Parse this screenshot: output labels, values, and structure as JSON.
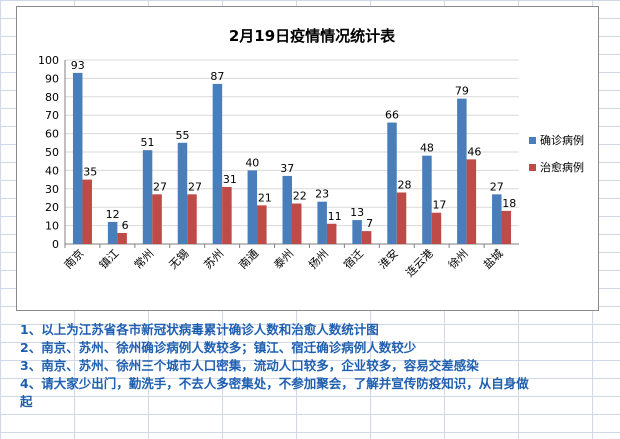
{
  "chart_data": {
    "type": "bar",
    "title": "2月19日疫情情况统计表",
    "categories": [
      "南京",
      "镇江",
      "常州",
      "无锡",
      "苏州",
      "南通",
      "泰州",
      "扬州",
      "宿迁",
      "淮安",
      "连云港",
      "徐州",
      "盐城"
    ],
    "series": [
      {
        "name": "确诊病例",
        "values": [
          93,
          12,
          51,
          55,
          87,
          40,
          37,
          23,
          13,
          66,
          48,
          79,
          27
        ],
        "color": "#4a7ebb"
      },
      {
        "name": "治愈病例",
        "values": [
          35,
          6,
          27,
          27,
          31,
          21,
          22,
          11,
          7,
          28,
          17,
          46,
          18
        ],
        "color": "#be4b48"
      }
    ],
    "ylim": [
      0,
      100
    ],
    "yticks": [
      0,
      10,
      20,
      30,
      40,
      50,
      60,
      70,
      80,
      90,
      100
    ],
    "grid": true,
    "legend": "right",
    "xlabel": "",
    "ylabel": ""
  },
  "notes": [
    "1、以上为江苏省各市新冠状病毒累计确诊人数和治愈人数统计图",
    "2、南京、苏州、徐州确诊病例人数较多；镇江、宿迁确诊病例人数较少",
    "3、南京、苏州、徐州三个城市人口密集，流动人口较多，企业较多，容易交差感染",
    "4、请大家少出门，勤洗手，不去人多密集处，不参加聚会，了解并宣传防疫知识，从自身做起"
  ],
  "colors": {
    "gridline": "#d9d9d9",
    "cell_border": "#d0d7e5",
    "note_text": "#1f5fb0"
  }
}
